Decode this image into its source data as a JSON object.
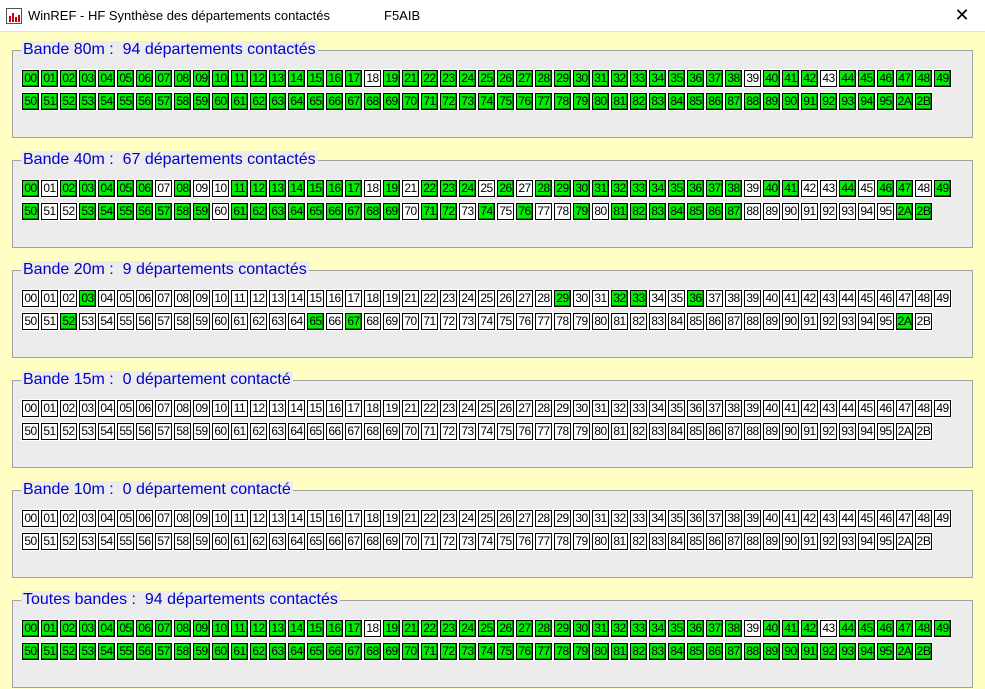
{
  "window": {
    "title": "WinREF - HF  Synthèse des départements contactés",
    "callsign": "F5AIB",
    "close_icon": "✕"
  },
  "colors": {
    "contacted": "#00ee00",
    "not_contacted": "#ffffff",
    "title": "#0000c8",
    "background": "#ffffc4"
  },
  "departments": {
    "row1": [
      "00",
      "01",
      "02",
      "03",
      "04",
      "05",
      "06",
      "07",
      "08",
      "09",
      "10",
      "11",
      "12",
      "13",
      "14",
      "15",
      "16",
      "17",
      "18",
      "19",
      "21",
      "22",
      "23",
      "24",
      "25",
      "26",
      "27",
      "28",
      "29",
      "30",
      "31",
      "32",
      "33",
      "34",
      "35",
      "36",
      "37",
      "38",
      "39",
      "40",
      "41",
      "42",
      "43",
      "44",
      "45",
      "46",
      "47",
      "48",
      "49"
    ],
    "row2": [
      "50",
      "51",
      "52",
      "53",
      "54",
      "55",
      "56",
      "57",
      "58",
      "59",
      "60",
      "61",
      "62",
      "63",
      "64",
      "65",
      "66",
      "67",
      "68",
      "69",
      "70",
      "71",
      "72",
      "73",
      "74",
      "75",
      "76",
      "77",
      "78",
      "79",
      "80",
      "81",
      "82",
      "83",
      "84",
      "85",
      "86",
      "87",
      "88",
      "89",
      "90",
      "91",
      "92",
      "93",
      "94",
      "95",
      "2A",
      "2B"
    ]
  },
  "bands": [
    {
      "title": "Bande 80m :  94 départements contactés",
      "count": 94,
      "mode": "exclude",
      "list": [
        "18",
        "39",
        "43"
      ]
    },
    {
      "title": "Bande 40m :  67 départements contactés",
      "count": 67,
      "mode": "exclude",
      "list": [
        "01",
        "07",
        "09",
        "10",
        "18",
        "21",
        "25",
        "27",
        "39",
        "42",
        "43",
        "45",
        "48",
        "51",
        "52",
        "60",
        "70",
        "73",
        "75",
        "77",
        "78",
        "80",
        "88",
        "89",
        "90",
        "91",
        "92",
        "93",
        "94",
        "95"
      ]
    },
    {
      "title": "Bande 20m :  9 départements contactés",
      "count": 9,
      "mode": "include",
      "list": [
        "03",
        "29",
        "32",
        "33",
        "36",
        "52",
        "65",
        "67",
        "2A"
      ]
    },
    {
      "title": "Bande 15m :  0 département contacté",
      "count": 0,
      "mode": "include",
      "list": []
    },
    {
      "title": "Bande 10m :  0 département contacté",
      "count": 0,
      "mode": "include",
      "list": []
    },
    {
      "title": "Toutes bandes :  94 départements contactés",
      "count": 94,
      "mode": "exclude",
      "list": [
        "18",
        "39",
        "43"
      ]
    }
  ]
}
